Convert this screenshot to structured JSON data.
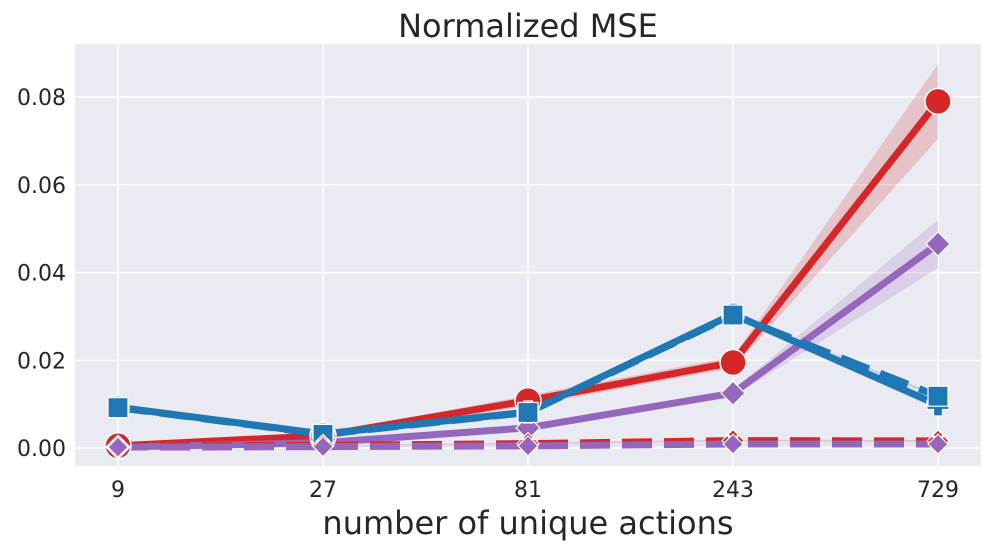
{
  "chart_data": {
    "type": "line",
    "title": "Normalized MSE",
    "xlabel": "number of unique actions",
    "ylabel": "",
    "x_scale": "log",
    "x": [
      9,
      27,
      81,
      243,
      729
    ],
    "x_tick_labels": [
      "9",
      "27",
      "81",
      "243",
      "729"
    ],
    "y_ticks": [
      0.0,
      0.02,
      0.04,
      0.06,
      0.08
    ],
    "y_tick_labels": [
      "0.00",
      "0.02",
      "0.04",
      "0.06",
      "0.08"
    ],
    "ylim": [
      -0.004,
      0.092
    ],
    "grid": true,
    "legend": "none",
    "series": [
      {
        "color": "#d62728",
        "dash": "solid",
        "marker": "circle",
        "values": [
          0.0005,
          0.0028,
          0.0108,
          0.0195,
          0.079
        ],
        "band_low": [
          0.0003,
          0.0023,
          0.0096,
          0.0182,
          0.0705
        ],
        "band_high": [
          0.0007,
          0.0033,
          0.012,
          0.0208,
          0.0875
        ]
      },
      {
        "color": "#9467bd",
        "dash": "solid",
        "marker": "diamond",
        "values": [
          0.0002,
          0.0012,
          0.0046,
          0.0125,
          0.0465
        ],
        "band_low": [
          0.0001,
          0.0009,
          0.004,
          0.0117,
          0.041
        ],
        "band_high": [
          0.0003,
          0.0015,
          0.0052,
          0.0133,
          0.052
        ]
      },
      {
        "color": "#1f77b4",
        "dash": "solid",
        "marker": "plus",
        "values": [
          0.0093,
          0.0032,
          0.0082,
          0.0305,
          0.0098
        ],
        "band_low": [
          0.0091,
          0.003,
          0.0079,
          0.03,
          0.0095
        ],
        "band_high": [
          0.0095,
          0.0034,
          0.0085,
          0.031,
          0.0101
        ]
      },
      {
        "color": "#1f77b4",
        "dash": "dashed",
        "marker": "square",
        "values": [
          0.0092,
          0.0031,
          0.0081,
          0.0303,
          0.0118
        ],
        "band_low": [
          0.009,
          0.0029,
          0.0078,
          0.0298,
          0.0115
        ],
        "band_high": [
          0.0094,
          0.0033,
          0.0084,
          0.0308,
          0.0121
        ]
      },
      {
        "color": "#d62728",
        "dash": "dashed",
        "marker": "x",
        "values": [
          0.0004,
          0.0006,
          0.001,
          0.0017,
          0.0016
        ],
        "band_low": [
          0.0003,
          0.0005,
          0.0008,
          0.0015,
          0.0014
        ],
        "band_high": [
          0.0005,
          0.0007,
          0.0012,
          0.0019,
          0.0018
        ]
      },
      {
        "color": "#9467bd",
        "dash": "dashed",
        "marker": "diamond-small",
        "values": [
          0.0002,
          0.0003,
          0.0005,
          0.0009,
          0.0009
        ],
        "band_low": [
          0.0001,
          0.0002,
          0.0004,
          0.0008,
          0.0008
        ],
        "band_high": [
          0.0003,
          0.0004,
          0.0006,
          0.001,
          0.001
        ]
      }
    ]
  }
}
